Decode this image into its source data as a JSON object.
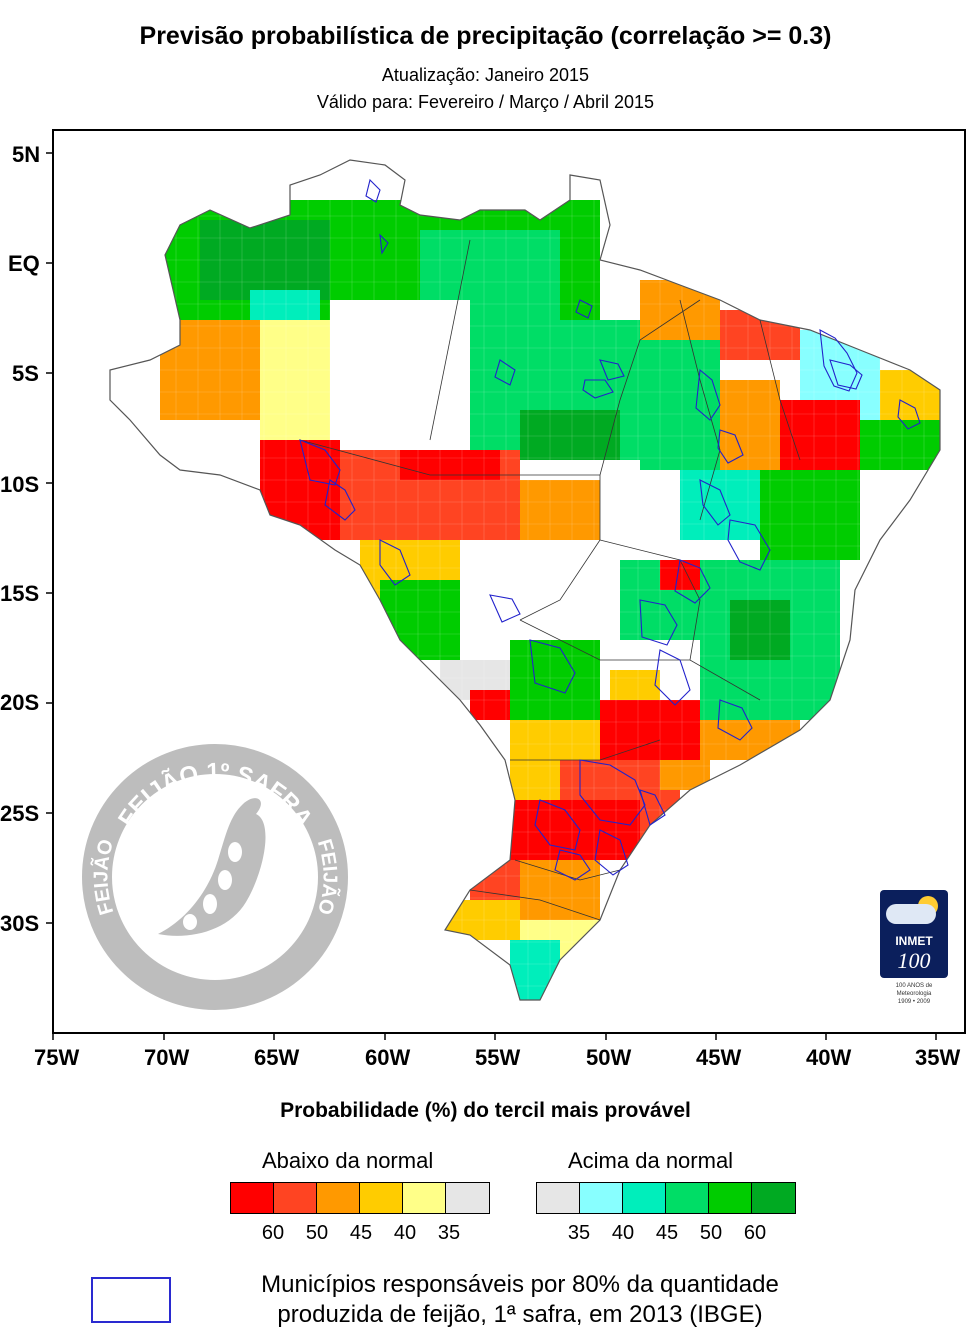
{
  "title": "Previsão probabilística de precipitação (correlação >= 0.3)",
  "subtitle1": "Atualização: Janeiro 2015",
  "subtitle2": "Válido para: Fevereiro / Março / Abril 2015",
  "axes": {
    "lat_labels": [
      "5N",
      "EQ",
      "5S",
      "10S",
      "15S",
      "20S",
      "25S",
      "30S"
    ],
    "lon_labels": [
      "75W",
      "70W",
      "65W",
      "60W",
      "55W",
      "50W",
      "45W",
      "40W",
      "35W"
    ]
  },
  "stamp": {
    "top_text": "FEIJÃO 1º SAFRA",
    "left_text": "FEIJÃO",
    "right_text": "FEIJÃO"
  },
  "inmet_logo": {
    "name": "INMET",
    "number": "100",
    "caption1": "100 ANOS de",
    "caption2": "Meteorologia",
    "caption3": "1909 • 2009"
  },
  "legend": {
    "title": "Probabilidade (%) do tercil mais provável",
    "below_label": "Abaixo da normal",
    "above_label": "Acima da normal",
    "below_colors": [
      "#ff0000",
      "#ff4422",
      "#ff9900",
      "#ffcc00",
      "#ffff88",
      "#e6e6e6"
    ],
    "above_colors": [
      "#e6e6e6",
      "#88ffff",
      "#00eebb",
      "#00dd66",
      "#00cc00",
      "#00aa22"
    ],
    "below_ticks": [
      "60",
      "50",
      "45",
      "40",
      "35"
    ],
    "above_ticks": [
      "35",
      "40",
      "45",
      "50",
      "60"
    ]
  },
  "note": {
    "line1": "Municípios responsáveis por 80% da quantidade",
    "line2": "produzida de feijão, 1ª safra, em 2013 (IBGE)"
  }
}
